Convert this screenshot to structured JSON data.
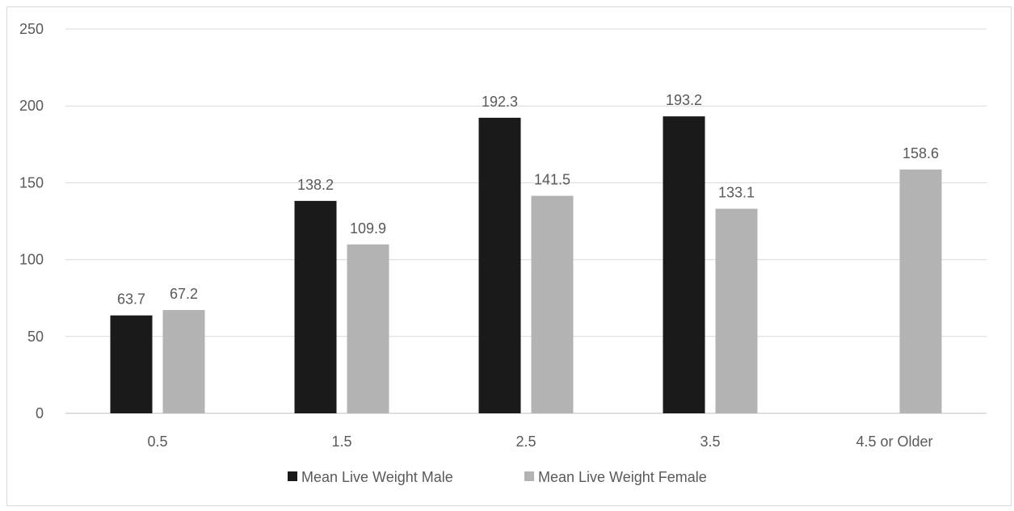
{
  "chart_data": {
    "type": "bar",
    "title": "",
    "xlabel": "",
    "ylabel": "",
    "categories": [
      "0.5",
      "1.5",
      "2.5",
      "3.5",
      "4.5 or Older"
    ],
    "series": [
      {
        "name": "Mean Live Weight Male",
        "values": [
          63.7,
          138.2,
          192.3,
          193.2,
          null
        ],
        "labels": [
          "63.7",
          "138.2",
          "192.3",
          "193.2",
          ""
        ],
        "color": "#1a1a1a"
      },
      {
        "name": "Mean Live Weight Female",
        "values": [
          67.2,
          109.9,
          141.5,
          133.1,
          158.6
        ],
        "labels": [
          "67.2",
          "109.9",
          "141.5",
          "133.1",
          "158.6"
        ],
        "color": "#b3b3b3"
      }
    ],
    "ylim": [
      0,
      250
    ],
    "yticks": [
      "0",
      "50",
      "100",
      "150",
      "200",
      "250"
    ],
    "grid": true,
    "legend_position": "bottom",
    "gridline_color": "#d9d9d9",
    "axis_line_color": "#bfbfbf"
  }
}
